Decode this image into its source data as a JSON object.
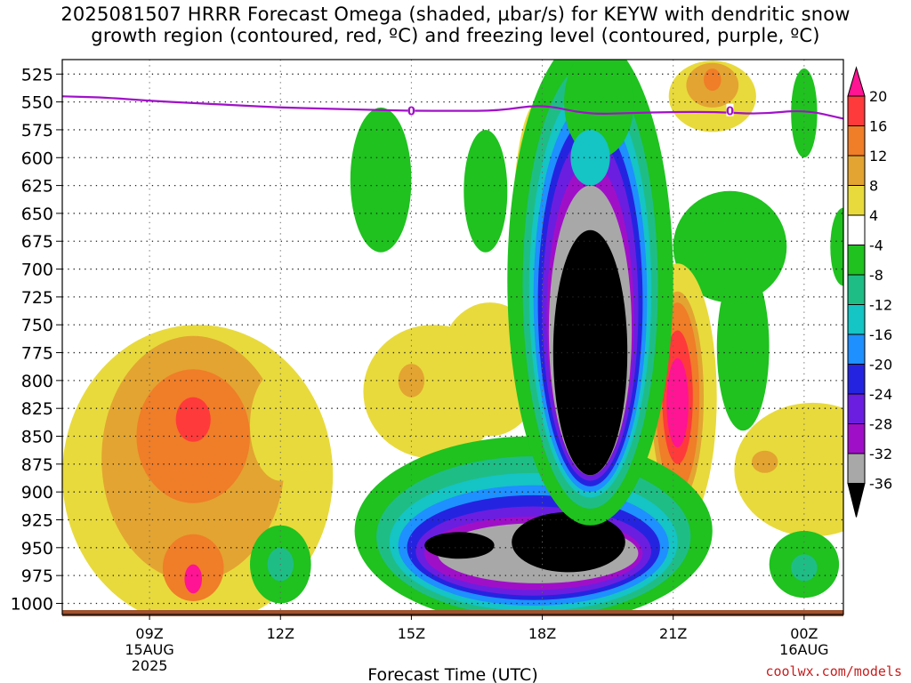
{
  "title_line1": "2025081507 HRRR Forecast Omega (shaded, µbar/s) for KEYW with dendritic snow",
  "title_line2": "growth region (contoured, red, ºC) and freezing level (contoured, purple, ºC)",
  "credit": "coolwx.com/models",
  "chart_data": {
    "type": "heatmap",
    "xlabel": "Forecast Time (UTC)",
    "ylabel": "",
    "x_ticks": [
      {
        "hour": 9,
        "label": "09Z",
        "sub1": "15AUG",
        "sub2": "2025"
      },
      {
        "hour": 12,
        "label": "12Z",
        "sub1": "",
        "sub2": ""
      },
      {
        "hour": 15,
        "label": "15Z",
        "sub1": "",
        "sub2": ""
      },
      {
        "hour": 18,
        "label": "18Z",
        "sub1": "",
        "sub2": ""
      },
      {
        "hour": 21,
        "label": "21Z",
        "sub1": "",
        "sub2": ""
      },
      {
        "hour": 24,
        "label": "00Z",
        "sub1": "16AUG",
        "sub2": ""
      }
    ],
    "xlim_hours": [
      7.0,
      24.9
    ],
    "y_levels_hpa": [
      525,
      550,
      575,
      600,
      625,
      650,
      675,
      700,
      725,
      750,
      775,
      800,
      825,
      850,
      875,
      900,
      925,
      950,
      975,
      1000
    ],
    "ylim_hpa": [
      512,
      1010
    ],
    "grid": "dotted",
    "colorbar": {
      "labels": [
        "20",
        "16",
        "12",
        "8",
        "4",
        "-4",
        "-8",
        "-12",
        "-16",
        "-20",
        "-24",
        "-28",
        "-32",
        "-36"
      ],
      "bands": [
        {
          "range": "> 20",
          "color": "#ff1493"
        },
        {
          "range": "16 to 20",
          "color": "#ff3a3a"
        },
        {
          "range": "12 to 16",
          "color": "#f07d28"
        },
        {
          "range": "8 to 12",
          "color": "#e3a431"
        },
        {
          "range": "4 to 8",
          "color": "#e8da3c"
        },
        {
          "range": "-4 to 4",
          "color": "#ffffff"
        },
        {
          "range": "-8 to -4",
          "color": "#1fc21f"
        },
        {
          "range": "-12 to -8",
          "color": "#1fbd86"
        },
        {
          "range": "-16 to -12",
          "color": "#15c4c4"
        },
        {
          "range": "-20 to -16",
          "color": "#1e90ff"
        },
        {
          "range": "-24 to -20",
          "color": "#2424e0"
        },
        {
          "range": "-28 to -24",
          "color": "#6b1ee0"
        },
        {
          "range": "-32 to -28",
          "color": "#a00fc8"
        },
        {
          "range": "-36 to -32",
          "color": "#a8a8a8"
        },
        {
          "range": "< -36",
          "color": "#000000"
        }
      ]
    },
    "freezing_level": {
      "label": "0",
      "color": "#a012c8",
      "points": [
        {
          "hour": 7.0,
          "hpa": 545
        },
        {
          "hour": 8.0,
          "hpa": 546
        },
        {
          "hour": 9.0,
          "hpa": 549
        },
        {
          "hour": 10.0,
          "hpa": 551
        },
        {
          "hour": 11.0,
          "hpa": 553
        },
        {
          "hour": 12.0,
          "hpa": 555
        },
        {
          "hour": 13.0,
          "hpa": 556
        },
        {
          "hour": 14.0,
          "hpa": 557
        },
        {
          "hour": 15.0,
          "hpa": 558
        },
        {
          "hour": 16.0,
          "hpa": 558
        },
        {
          "hour": 17.0,
          "hpa": 558
        },
        {
          "hour": 18.0,
          "hpa": 552
        },
        {
          "hour": 19.0,
          "hpa": 561
        },
        {
          "hour": 20.0,
          "hpa": 560
        },
        {
          "hour": 21.0,
          "hpa": 559
        },
        {
          "hour": 22.0,
          "hpa": 559
        },
        {
          "hour": 23.0,
          "hpa": 561
        },
        {
          "hour": 24.0,
          "hpa": 557
        },
        {
          "hour": 24.9,
          "hpa": 565
        }
      ]
    },
    "omega_regions": [
      {
        "band": 4,
        "hour": 10.1,
        "hpa": 885,
        "rh": 3.1,
        "rp": 135
      },
      {
        "band": 3,
        "hour": 10.0,
        "hpa": 870,
        "rh": 2.1,
        "rp": 110
      },
      {
        "band": 2,
        "hour": 10.0,
        "hpa": 850,
        "rh": 1.3,
        "rp": 60
      },
      {
        "band": 1,
        "hour": 10.0,
        "hpa": 835,
        "rh": 0.4,
        "rp": 20
      },
      {
        "band": 2,
        "hour": 10.0,
        "hpa": 968,
        "rh": 0.7,
        "rp": 30
      },
      {
        "band": 0,
        "hour": 10.0,
        "hpa": 978,
        "rh": 0.2,
        "rp": 13
      },
      {
        "band": 4,
        "hour": 12.0,
        "hpa": 840,
        "rh": 0.7,
        "rp": 50
      },
      {
        "band": 4,
        "hour": 15.5,
        "hpa": 810,
        "rh": 1.6,
        "rp": 60
      },
      {
        "band": 3,
        "hour": 15.0,
        "hpa": 800,
        "rh": 0.3,
        "rp": 15
      },
      {
        "band": 3,
        "hour": 16.8,
        "hpa": 800,
        "rh": 0.3,
        "rp": 12
      },
      {
        "band": 4,
        "hour": 16.8,
        "hpa": 790,
        "rh": 1.2,
        "rp": 60
      },
      {
        "band": 4,
        "hour": 17.9,
        "hpa": 680,
        "rh": 0.6,
        "rp": 130
      },
      {
        "band": 6,
        "hour": 14.3,
        "hpa": 620,
        "rh": 0.7,
        "rp": 65
      },
      {
        "band": 6,
        "hour": 16.7,
        "hpa": 630,
        "rh": 0.5,
        "rp": 55
      },
      {
        "band": 4,
        "hour": 21.9,
        "hpa": 545,
        "rh": 1.0,
        "rp": 32
      },
      {
        "band": 3,
        "hour": 21.9,
        "hpa": 535,
        "rh": 0.6,
        "rp": 20
      },
      {
        "band": 2,
        "hour": 21.9,
        "hpa": 530,
        "rh": 0.2,
        "rp": 10
      },
      {
        "band": 6,
        "hour": 24.0,
        "hpa": 560,
        "rh": 0.3,
        "rp": 40
      },
      {
        "band": 6,
        "hour": 22.3,
        "hpa": 680,
        "rh": 1.3,
        "rp": 50
      },
      {
        "band": 6,
        "hour": 22.6,
        "hpa": 770,
        "rh": 0.6,
        "rp": 75
      },
      {
        "band": 6,
        "hour": 24.9,
        "hpa": 680,
        "rh": 0.3,
        "rp": 35
      },
      {
        "band": 4,
        "hour": 21.1,
        "hpa": 815,
        "rh": 0.9,
        "rp": 120
      },
      {
        "band": 3,
        "hour": 21.1,
        "hpa": 815,
        "rh": 0.6,
        "rp": 95
      },
      {
        "band": 2,
        "hour": 21.1,
        "hpa": 815,
        "rh": 0.5,
        "rp": 85
      },
      {
        "band": 1,
        "hour": 21.1,
        "hpa": 815,
        "rh": 0.35,
        "rp": 60
      },
      {
        "band": 0,
        "hour": 21.1,
        "hpa": 820,
        "rh": 0.25,
        "rp": 40
      },
      {
        "band": 4,
        "hour": 24.2,
        "hpa": 880,
        "rh": 1.8,
        "rp": 60
      },
      {
        "band": 3,
        "hour": 23.1,
        "hpa": 873,
        "rh": 0.3,
        "rp": 10
      },
      {
        "band": 6,
        "hour": 12.0,
        "hpa": 965,
        "rh": 0.7,
        "rp": 35
      },
      {
        "band": 7,
        "hour": 12.0,
        "hpa": 965,
        "rh": 0.3,
        "rp": 15
      },
      {
        "band": 6,
        "hour": 24.0,
        "hpa": 965,
        "rh": 0.8,
        "rp": 30
      },
      {
        "band": 7,
        "hour": 24.0,
        "hpa": 968,
        "rh": 0.3,
        "rp": 12
      },
      {
        "band": 6,
        "hour": 17.8,
        "hpa": 935,
        "rh": 4.1,
        "rp": 85
      },
      {
        "band": 7,
        "hour": 17.8,
        "hpa": 940,
        "rh": 3.6,
        "rp": 72
      },
      {
        "band": 8,
        "hour": 17.8,
        "hpa": 945,
        "rh": 3.3,
        "rp": 62
      },
      {
        "band": 9,
        "hour": 17.8,
        "hpa": 948,
        "rh": 3.1,
        "rp": 54
      },
      {
        "band": 10,
        "hour": 17.8,
        "hpa": 950,
        "rh": 2.9,
        "rp": 47
      },
      {
        "band": 11,
        "hour": 17.8,
        "hpa": 953,
        "rh": 2.7,
        "rp": 40
      },
      {
        "band": 12,
        "hour": 17.8,
        "hpa": 955,
        "rh": 2.5,
        "rp": 33
      },
      {
        "band": 13,
        "hour": 17.9,
        "hpa": 955,
        "rh": 2.3,
        "rp": 27
      },
      {
        "band": 14,
        "hour": 16.1,
        "hpa": 948,
        "rh": 0.8,
        "rp": 12
      },
      {
        "band": 14,
        "hour": 18.6,
        "hpa": 945,
        "rh": 1.3,
        "rp": 27
      },
      {
        "band": 6,
        "hour": 19.1,
        "hpa": 710,
        "rh": 1.9,
        "rp": 220
      },
      {
        "band": 7,
        "hour": 19.1,
        "hpa": 715,
        "rh": 1.55,
        "rp": 200
      },
      {
        "band": 8,
        "hour": 19.1,
        "hpa": 720,
        "rh": 1.4,
        "rp": 185
      },
      {
        "band": 9,
        "hour": 19.1,
        "hpa": 725,
        "rh": 1.3,
        "rp": 175
      },
      {
        "band": 10,
        "hour": 19.1,
        "hpa": 730,
        "rh": 1.2,
        "rp": 165
      },
      {
        "band": 11,
        "hour": 19.1,
        "hpa": 735,
        "rh": 1.1,
        "rp": 155
      },
      {
        "band": 12,
        "hour": 19.1,
        "hpa": 745,
        "rh": 1.0,
        "rp": 140
      },
      {
        "band": 13,
        "hour": 19.1,
        "hpa": 755,
        "rh": 0.95,
        "rp": 130
      },
      {
        "band": 14,
        "hour": 19.1,
        "hpa": 775,
        "rh": 0.85,
        "rp": 110
      },
      {
        "band": 6,
        "hour": 19.3,
        "hpa": 550,
        "rh": 0.8,
        "rp": 50
      },
      {
        "band": 8,
        "hour": 19.1,
        "hpa": 600,
        "rh": 0.45,
        "rp": 25
      }
    ]
  }
}
